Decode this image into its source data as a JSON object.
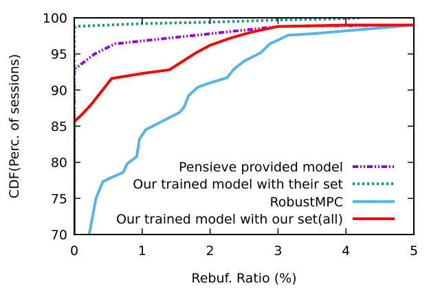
{
  "chart_data": {
    "type": "line",
    "xlabel": "Rebuf. Ratio (%)",
    "ylabel": "CDF(Perc. of sessions)",
    "xlim": [
      0,
      5
    ],
    "ylim": [
      70,
      100
    ],
    "xticks": [
      0,
      1,
      2,
      3,
      4,
      5
    ],
    "yticks": [
      70,
      75,
      80,
      85,
      90,
      95,
      100
    ],
    "legend_position": "bottom-right",
    "grid": false,
    "series": [
      {
        "name": "Pensieve provided model",
        "color": "#9400d3",
        "dash": "dash-dot-dot",
        "x": [
          0,
          0,
          0.02,
          0.3,
          0.6,
          1.0,
          1.5,
          2.0,
          2.5,
          3.0,
          3.5,
          4.0,
          4.7,
          5.0
        ],
        "y": [
          70,
          92.5,
          93.0,
          95.0,
          96.4,
          96.8,
          97.3,
          97.8,
          98.3,
          98.8,
          98.9,
          98.9,
          99.0,
          99.0
        ]
      },
      {
        "name": "Our trained model with their set",
        "color": "#009e73",
        "dash": "dotted",
        "x": [
          0,
          0,
          0.02,
          0.5,
          1.0,
          2.0,
          3.0,
          3.5,
          4.0,
          4.2
        ],
        "y": [
          70,
          98.5,
          98.8,
          99.0,
          99.2,
          99.4,
          99.7,
          99.8,
          99.9,
          100
        ]
      },
      {
        "name": "RobustMPC",
        "color": "#56b4e9",
        "dash": "solid",
        "x": [
          0.22,
          0.32,
          0.42,
          0.55,
          0.72,
          0.78,
          0.92,
          0.96,
          1.05,
          1.3,
          1.55,
          1.62,
          1.68,
          1.82,
          2.0,
          2.25,
          2.35,
          2.5,
          2.75,
          2.88,
          3.15,
          3.5,
          4.0,
          4.5,
          5.0
        ],
        "y": [
          70,
          75.0,
          77.3,
          77.9,
          78.6,
          79.8,
          80.8,
          83.2,
          84.5,
          85.7,
          86.9,
          87.7,
          89.2,
          90.4,
          91.0,
          91.7,
          92.9,
          94.0,
          95.2,
          96.4,
          97.6,
          97.8,
          98.2,
          98.6,
          99.0
        ]
      },
      {
        "name": "Our trained model with our set(all)",
        "color": "#ff0000",
        "dash": "solid",
        "x": [
          0,
          0,
          0.02,
          0.1,
          0.25,
          0.45,
          0.55,
          1.0,
          1.4,
          1.6,
          1.8,
          2.0,
          2.3,
          2.6,
          3.0,
          3.5,
          4.0,
          5.0
        ],
        "y": [
          70,
          85.5,
          85.8,
          86.5,
          88.0,
          90.4,
          91.6,
          92.3,
          92.8,
          94.0,
          95.2,
          96.2,
          97.2,
          98.0,
          98.8,
          98.9,
          99.0,
          99.0
        ]
      }
    ]
  }
}
